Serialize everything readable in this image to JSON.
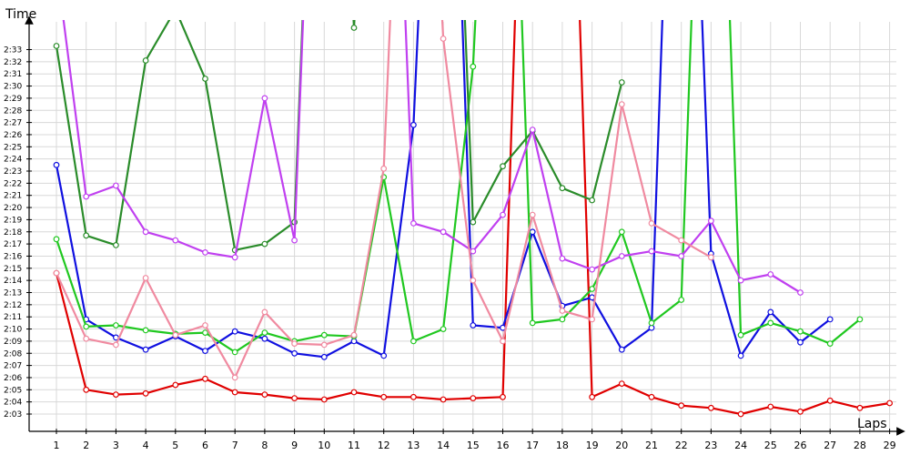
{
  "chart_data": {
    "type": "line",
    "ylabel": "Time",
    "xlabel": "Laps",
    "x": [
      1,
      2,
      3,
      4,
      5,
      6,
      7,
      8,
      9,
      10,
      11,
      12,
      13,
      14,
      15,
      16,
      17,
      18,
      19,
      20,
      21,
      22,
      23,
      24,
      25,
      26,
      27,
      28,
      29
    ],
    "x_ticks": [
      "1",
      "2",
      "3",
      "4",
      "5",
      "6",
      "7",
      "8",
      "9",
      "10",
      "11",
      "12",
      "13",
      "14",
      "15",
      "16",
      "17",
      "18",
      "19",
      "20",
      "21",
      "22",
      "23",
      "24",
      "25",
      "26",
      "27",
      "28",
      "29"
    ],
    "y_ticks": [
      "2:03",
      "2:04",
      "2:05",
      "2:06",
      "2:07",
      "2:08",
      "2:09",
      "2:10",
      "2:11",
      "2:12",
      "2:13",
      "2:14",
      "2:15",
      "2:16",
      "2:17",
      "2:18",
      "2:19",
      "2:20",
      "2:21",
      "2:22",
      "2:23",
      "2:24",
      "2:25",
      "2:26",
      "2:27",
      "2:28",
      "2:29",
      "2:30",
      "2:31",
      "2:32",
      "2:33"
    ],
    "ylim_seconds": [
      122,
      155
    ],
    "grid": true,
    "series": [
      {
        "color": "#e00000",
        "values": [
          134.6,
          125.0,
          124.6,
          124.7,
          125.4,
          125.9,
          124.8,
          124.6,
          124.3,
          124.2,
          124.8,
          124.4,
          124.4,
          124.2,
          124.3,
          124.4,
          200,
          200,
          124.4,
          125.5,
          124.4,
          123.7,
          123.5,
          123.0,
          123.6,
          123.2,
          124.1,
          123.5,
          123.9
        ]
      },
      {
        "color": "#1010e0",
        "values": [
          143.5,
          130.8,
          129.3,
          128.3,
          129.4,
          128.2,
          129.8,
          129.2,
          128.0,
          127.7,
          129.0,
          127.8,
          146.8,
          200,
          130.3,
          130.1,
          138.0,
          131.9,
          132.6,
          128.3,
          130.1,
          200,
          136.2,
          127.8,
          131.4,
          128.9,
          130.8,
          null,
          null
        ]
      },
      {
        "color": "#20c820",
        "values": [
          137.4,
          130.2,
          130.3,
          129.9,
          129.6,
          129.7,
          128.1,
          129.7,
          129.0,
          129.5,
          129.4,
          142.5,
          129.0,
          130.0,
          151.6,
          200,
          130.5,
          130.8,
          133.3,
          138.0,
          130.5,
          132.4,
          200,
          129.5,
          130.5,
          129.8,
          128.8,
          130.8,
          null
        ]
      },
      {
        "color": "#2a8c2a",
        "values": [
          153.3,
          137.7,
          136.9,
          152.1,
          156.3,
          150.6,
          136.5,
          137.0,
          138.8,
          200,
          154.8,
          200,
          200,
          200,
          138.8,
          143.4,
          146.3,
          141.6,
          140.6,
          150.3,
          null,
          null,
          null,
          null,
          null,
          null,
          null,
          null,
          null
        ]
      },
      {
        "color": "#c040f0",
        "values": [
          160,
          140.9,
          141.8,
          138.0,
          137.3,
          136.3,
          135.9,
          149.0,
          137.3,
          200,
          null,
          200,
          138.7,
          138.0,
          136.4,
          139.4,
          146.4,
          135.8,
          134.9,
          136.0,
          136.4,
          136.0,
          138.9,
          134.0,
          134.5,
          133.0,
          null,
          null,
          null
        ]
      },
      {
        "color": "#f08aa0",
        "values": [
          134.6,
          129.2,
          128.7,
          134.2,
          129.5,
          130.3,
          126.0,
          131.4,
          128.8,
          128.7,
          129.5,
          143.2,
          200,
          153.9,
          134.0,
          129.0,
          139.4,
          131.5,
          130.8,
          148.5,
          138.7,
          137.3,
          135.9,
          null,
          null,
          null,
          null,
          null,
          null
        ]
      }
    ]
  }
}
